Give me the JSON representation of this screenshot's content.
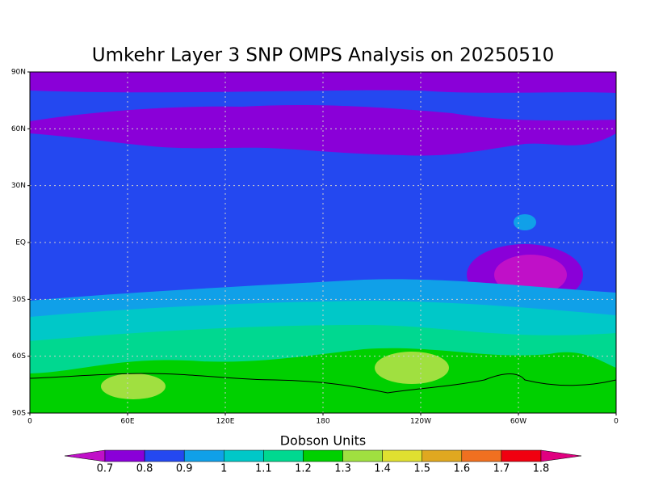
{
  "title": "Umkehr Layer 3 SNP OMPS Analysis on 20250510",
  "map": {
    "xlim": [
      0,
      360
    ],
    "ylim": [
      -90,
      90
    ],
    "lat_ticks": [
      {
        "value": 90,
        "label": "90N"
      },
      {
        "value": 60,
        "label": "60N"
      },
      {
        "value": 30,
        "label": "30N"
      },
      {
        "value": 0,
        "label": "EQ"
      },
      {
        "value": -30,
        "label": "30S"
      },
      {
        "value": -60,
        "label": "60S"
      },
      {
        "value": -90,
        "label": "90S"
      }
    ],
    "lon_ticks": [
      0,
      {
        "value": 60,
        "label": "60E"
      },
      {
        "value": 120,
        "label": "120E"
      },
      180,
      {
        "value": 240,
        "label": "120W"
      },
      {
        "value": 300,
        "label": "60W"
      },
      {
        "value": 360,
        "label": "0"
      }
    ]
  },
  "colorbar": {
    "label": "Dobson Units",
    "levels": [
      0.7,
      0.8,
      0.9,
      1,
      1.1,
      1.2,
      1.3,
      1.4,
      1.5,
      1.6,
      1.7,
      1.8
    ],
    "colors": [
      "#c010c8",
      "#8a00d8",
      "#2448f0",
      "#10a0e8",
      "#00c8c8",
      "#00d890",
      "#00d000",
      "#a0e040",
      "#e0e030",
      "#e0a820",
      "#f07020",
      "#f00010",
      "#e00080"
    ]
  }
}
